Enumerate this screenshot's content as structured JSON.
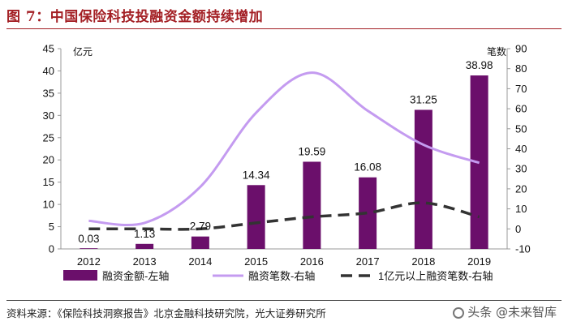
{
  "title": "图 7：中国保险科技投融资金额持续增加",
  "source": "资料来源：《保险科技洞察报告》北京金融科技研究院，光大证券研究所",
  "watermark": "头条 @未来智库",
  "colors": {
    "bar": "#6b0f6b",
    "line": "#c49bf0",
    "dash": "#333333",
    "title": "#a31f24"
  },
  "chart_data": {
    "type": "bar+line",
    "categories": [
      "2012",
      "2013",
      "2014",
      "2015",
      "2016",
      "2017",
      "2018",
      "2019"
    ],
    "left_axis": {
      "unit": "亿元",
      "ylim": [
        0,
        45
      ],
      "ticks": [
        0,
        5,
        10,
        15,
        20,
        25,
        30,
        35,
        40,
        45
      ]
    },
    "right_axis": {
      "unit": "笔数",
      "ylim": [
        -10,
        90
      ],
      "ticks": [
        -10,
        0,
        10,
        20,
        30,
        40,
        50,
        60,
        70,
        80,
        90
      ]
    },
    "series": [
      {
        "name": "融资金额-左轴",
        "type": "bar",
        "axis": "left",
        "values": [
          0.03,
          1.13,
          2.79,
          14.34,
          19.59,
          16.08,
          31.25,
          38.98
        ],
        "labels": [
          "0.03",
          "1.13",
          "2.79",
          "14.34",
          "19.59",
          "16.08",
          "31.25",
          "38.98"
        ]
      },
      {
        "name": "融资笔数-右轴",
        "type": "line",
        "axis": "right",
        "smooth": true,
        "values": [
          4,
          3,
          21,
          58,
          78,
          59,
          42,
          33
        ]
      },
      {
        "name": "1亿元以上融资笔数-右轴",
        "type": "line",
        "axis": "right",
        "dashed": true,
        "smooth": true,
        "values": [
          0,
          0,
          0,
          3,
          6,
          8,
          13,
          6
        ]
      }
    ]
  }
}
